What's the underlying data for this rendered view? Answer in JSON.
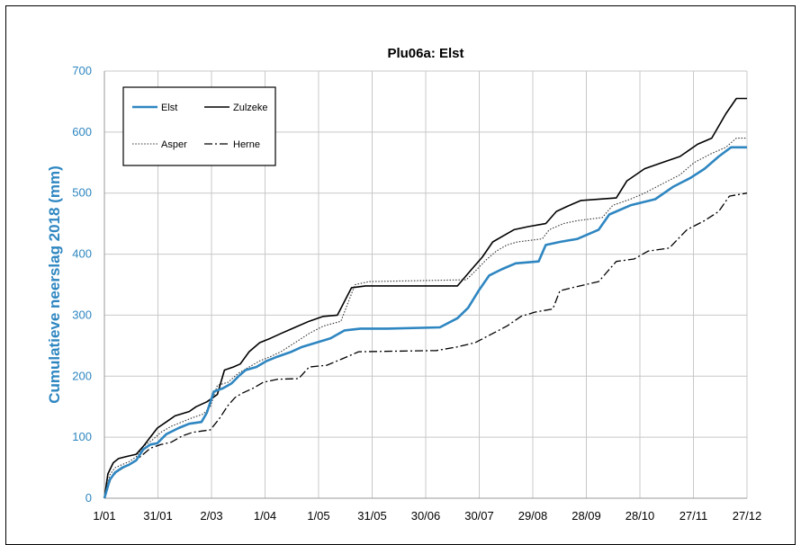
{
  "chart_data": {
    "type": "line",
    "title": "Plu06a: Elst",
    "ylabel": "Cumulatieve neerslag 2018 (mm)",
    "xlabel": "",
    "ylim": [
      0,
      700
    ],
    "yticks": [
      0,
      100,
      200,
      300,
      400,
      500,
      600,
      700
    ],
    "xticks": [
      "1/01",
      "31/01",
      "2/03",
      "1/04",
      "1/05",
      "31/05",
      "30/06",
      "30/07",
      "29/08",
      "28/09",
      "28/10",
      "27/11",
      "27/12"
    ],
    "grid": true,
    "legend_position": "top-left",
    "series": [
      {
        "name": "Elst",
        "color": "#2e86c1",
        "style": "solid-thick",
        "points": [
          [
            0,
            0
          ],
          [
            3,
            30
          ],
          [
            6,
            42
          ],
          [
            10,
            50
          ],
          [
            14,
            55
          ],
          [
            18,
            62
          ],
          [
            22,
            80
          ],
          [
            26,
            88
          ],
          [
            30,
            90
          ],
          [
            35,
            105
          ],
          [
            42,
            115
          ],
          [
            48,
            122
          ],
          [
            55,
            125
          ],
          [
            58,
            140
          ],
          [
            62,
            175
          ],
          [
            67,
            180
          ],
          [
            72,
            188
          ],
          [
            76,
            200
          ],
          [
            80,
            210
          ],
          [
            86,
            215
          ],
          [
            92,
            225
          ],
          [
            98,
            232
          ],
          [
            106,
            240
          ],
          [
            112,
            248
          ],
          [
            120,
            255
          ],
          [
            128,
            262
          ],
          [
            136,
            275
          ],
          [
            145,
            278
          ],
          [
            160,
            278
          ],
          [
            190,
            280
          ],
          [
            200,
            295
          ],
          [
            206,
            312
          ],
          [
            212,
            340
          ],
          [
            218,
            365
          ],
          [
            225,
            375
          ],
          [
            233,
            385
          ],
          [
            246,
            388
          ],
          [
            250,
            415
          ],
          [
            258,
            420
          ],
          [
            268,
            425
          ],
          [
            280,
            440
          ],
          [
            286,
            465
          ],
          [
            298,
            480
          ],
          [
            312,
            490
          ],
          [
            322,
            510
          ],
          [
            332,
            525
          ],
          [
            340,
            540
          ],
          [
            348,
            560
          ],
          [
            355,
            575
          ],
          [
            364,
            575
          ]
        ]
      },
      {
        "name": "Zulzeke",
        "color": "#000000",
        "style": "solid",
        "points": [
          [
            0,
            0
          ],
          [
            2,
            40
          ],
          [
            5,
            58
          ],
          [
            8,
            65
          ],
          [
            12,
            68
          ],
          [
            18,
            72
          ],
          [
            22,
            85
          ],
          [
            26,
            100
          ],
          [
            30,
            115
          ],
          [
            35,
            125
          ],
          [
            40,
            135
          ],
          [
            48,
            142
          ],
          [
            52,
            150
          ],
          [
            58,
            158
          ],
          [
            64,
            170
          ],
          [
            68,
            210
          ],
          [
            73,
            215
          ],
          [
            77,
            220
          ],
          [
            82,
            240
          ],
          [
            88,
            255
          ],
          [
            94,
            262
          ],
          [
            100,
            270
          ],
          [
            108,
            280
          ],
          [
            116,
            290
          ],
          [
            124,
            298
          ],
          [
            132,
            300
          ],
          [
            140,
            345
          ],
          [
            148,
            348
          ],
          [
            200,
            348
          ],
          [
            208,
            375
          ],
          [
            214,
            395
          ],
          [
            220,
            420
          ],
          [
            226,
            430
          ],
          [
            232,
            440
          ],
          [
            240,
            445
          ],
          [
            250,
            450
          ],
          [
            256,
            470
          ],
          [
            262,
            478
          ],
          [
            270,
            488
          ],
          [
            290,
            492
          ],
          [
            296,
            520
          ],
          [
            306,
            540
          ],
          [
            316,
            550
          ],
          [
            326,
            560
          ],
          [
            336,
            580
          ],
          [
            344,
            590
          ],
          [
            352,
            630
          ],
          [
            358,
            655
          ],
          [
            364,
            655
          ]
        ]
      },
      {
        "name": "Asper",
        "color": "#333333",
        "style": "dotted",
        "points": [
          [
            0,
            0
          ],
          [
            3,
            38
          ],
          [
            6,
            50
          ],
          [
            10,
            55
          ],
          [
            14,
            60
          ],
          [
            18,
            68
          ],
          [
            22,
            85
          ],
          [
            27,
            95
          ],
          [
            32,
            108
          ],
          [
            38,
            118
          ],
          [
            44,
            125
          ],
          [
            50,
            132
          ],
          [
            56,
            138
          ],
          [
            60,
            150
          ],
          [
            64,
            185
          ],
          [
            70,
            190
          ],
          [
            76,
            205
          ],
          [
            82,
            215
          ],
          [
            88,
            225
          ],
          [
            94,
            232
          ],
          [
            100,
            240
          ],
          [
            108,
            255
          ],
          [
            116,
            270
          ],
          [
            124,
            282
          ],
          [
            134,
            290
          ],
          [
            142,
            350
          ],
          [
            150,
            355
          ],
          [
            205,
            358
          ],
          [
            210,
            372
          ],
          [
            216,
            390
          ],
          [
            222,
            405
          ],
          [
            228,
            415
          ],
          [
            234,
            420
          ],
          [
            248,
            425
          ],
          [
            252,
            440
          ],
          [
            260,
            450
          ],
          [
            268,
            455
          ],
          [
            282,
            460
          ],
          [
            288,
            480
          ],
          [
            298,
            490
          ],
          [
            306,
            500
          ],
          [
            316,
            515
          ],
          [
            326,
            530
          ],
          [
            334,
            550
          ],
          [
            344,
            565
          ],
          [
            352,
            575
          ],
          [
            358,
            590
          ],
          [
            364,
            590
          ]
        ]
      },
      {
        "name": "Herne",
        "color": "#000000",
        "style": "dashdot",
        "points": [
          [
            0,
            0
          ],
          [
            4,
            35
          ],
          [
            8,
            45
          ],
          [
            12,
            52
          ],
          [
            16,
            58
          ],
          [
            22,
            72
          ],
          [
            26,
            82
          ],
          [
            32,
            88
          ],
          [
            38,
            92
          ],
          [
            44,
            102
          ],
          [
            50,
            108
          ],
          [
            60,
            112
          ],
          [
            65,
            130
          ],
          [
            70,
            152
          ],
          [
            74,
            165
          ],
          [
            78,
            172
          ],
          [
            84,
            180
          ],
          [
            90,
            190
          ],
          [
            98,
            195
          ],
          [
            110,
            196
          ],
          [
            116,
            215
          ],
          [
            126,
            218
          ],
          [
            136,
            230
          ],
          [
            144,
            240
          ],
          [
            188,
            242
          ],
          [
            200,
            248
          ],
          [
            210,
            255
          ],
          [
            220,
            270
          ],
          [
            228,
            282
          ],
          [
            236,
            298
          ],
          [
            244,
            305
          ],
          [
            254,
            310
          ],
          [
            258,
            340
          ],
          [
            265,
            345
          ],
          [
            280,
            355
          ],
          [
            290,
            388
          ],
          [
            300,
            392
          ],
          [
            308,
            405
          ],
          [
            320,
            410
          ],
          [
            330,
            440
          ],
          [
            340,
            455
          ],
          [
            348,
            470
          ],
          [
            354,
            495
          ],
          [
            364,
            500
          ]
        ]
      }
    ]
  }
}
